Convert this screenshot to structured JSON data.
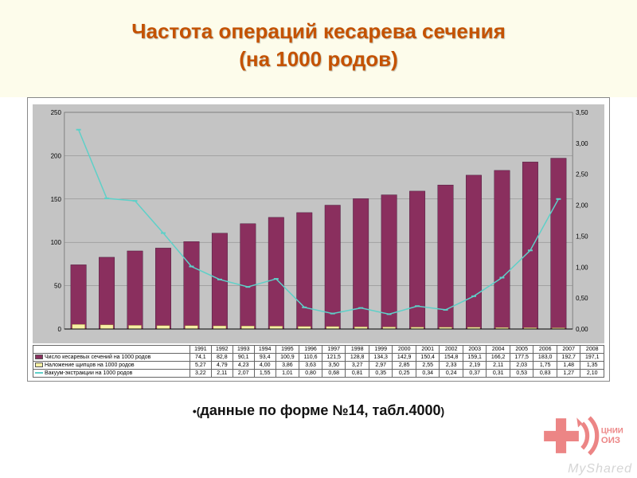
{
  "title_line1": "Частота операций  кесарева сечения",
  "title_line2": "(на 1000 родов)",
  "footer_text": "данные по форме №14, табл.4000",
  "logo_text": "ЦНИИ\nОИЗ",
  "watermark": "MyShared",
  "chart": {
    "type": "bar+line",
    "background_color": "#c4c4c4",
    "grid_color": "#808080",
    "y_left": {
      "min": 0,
      "max": 250,
      "step": 50,
      "fontsize": 8,
      "decimals": 0
    },
    "y_right": {
      "min": 0,
      "max": 3.5,
      "step": 0.5,
      "fontsize": 8,
      "decimals": 2
    },
    "categories": [
      "1991",
      "1992",
      "1993",
      "1994",
      "1995",
      "1996",
      "1997",
      "1998",
      "1999",
      "2000",
      "2001",
      "2002",
      "2003",
      "2004",
      "2005",
      "2006",
      "2007",
      "2008"
    ],
    "series": {
      "bars": {
        "label": "Число кесаревых сечений на 1000 родов",
        "color": "#8a2f5e",
        "values": [
          74.1,
          82.8,
          90.1,
          93.4,
          100.9,
          110.6,
          121.5,
          128.8,
          134.3,
          142.9,
          150.4,
          154.8,
          159.1,
          166.2,
          177.5,
          183.0,
          192.7,
          197.1
        ],
        "bar_width": 0.55
      },
      "boxes": {
        "label": "Наложение щипцов на 1000 родов",
        "color": "#f6f0a4",
        "values": [
          5.27,
          4.79,
          4.23,
          4.0,
          3.86,
          3.63,
          3.5,
          3.27,
          2.97,
          2.85,
          2.55,
          2.33,
          2.19,
          2.11,
          2.03,
          1.75,
          1.48,
          1.35
        ],
        "bar_width": 0.45
      },
      "line": {
        "label": "Вакуум-экстракции на 1000 родов",
        "color": "#5ed0c8",
        "values": [
          3.22,
          2.11,
          2.07,
          1.55,
          1.01,
          0.8,
          0.68,
          0.81,
          0.35,
          0.25,
          0.34,
          0.24,
          0.37,
          0.31,
          0.53,
          0.83,
          1.27,
          2.1
        ],
        "line_width": 1.5,
        "marker": "dash"
      }
    }
  }
}
